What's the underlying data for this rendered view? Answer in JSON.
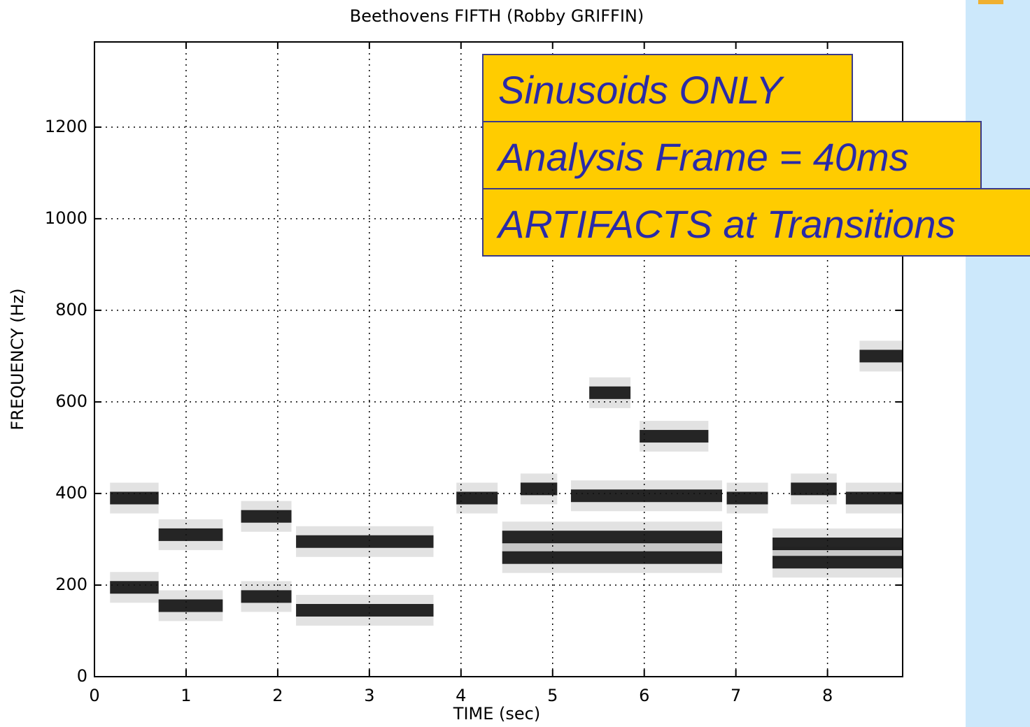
{
  "chart_data": {
    "type": "spectrogram",
    "title": "Beethovens FIFTH    (Robby GRIFFIN)",
    "xlabel": "TIME (sec)",
    "ylabel": "FREQUENCY (Hz)",
    "xlim": [
      0,
      8.82
    ],
    "ylim": [
      0,
      1386
    ],
    "xticks": [
      0,
      1,
      2,
      3,
      4,
      5,
      6,
      7,
      8
    ],
    "yticks": [
      0,
      200,
      400,
      600,
      800,
      1000,
      1200
    ],
    "grid": true,
    "color": "#111111",
    "tracks": [
      {
        "start": 0.17,
        "end": 0.7,
        "frequency": 390
      },
      {
        "start": 0.17,
        "end": 0.7,
        "frequency": 195
      },
      {
        "start": 0.7,
        "end": 1.4,
        "frequency": 310
      },
      {
        "start": 0.7,
        "end": 1.4,
        "frequency": 155
      },
      {
        "start": 1.6,
        "end": 2.15,
        "frequency": 350
      },
      {
        "start": 1.6,
        "end": 2.15,
        "frequency": 175
      },
      {
        "start": 2.2,
        "end": 3.7,
        "frequency": 295
      },
      {
        "start": 2.2,
        "end": 3.7,
        "frequency": 145
      },
      {
        "start": 3.95,
        "end": 4.4,
        "frequency": 390
      },
      {
        "start": 4.65,
        "end": 5.05,
        "frequency": 410
      },
      {
        "start": 4.45,
        "end": 6.85,
        "frequency": 305
      },
      {
        "start": 4.45,
        "end": 6.85,
        "frequency": 260
      },
      {
        "start": 5.2,
        "end": 6.85,
        "frequency": 395
      },
      {
        "start": 5.4,
        "end": 5.85,
        "frequency": 620
      },
      {
        "start": 5.95,
        "end": 6.7,
        "frequency": 525
      },
      {
        "start": 6.9,
        "end": 7.35,
        "frequency": 390
      },
      {
        "start": 7.4,
        "end": 8.82,
        "frequency": 290
      },
      {
        "start": 7.4,
        "end": 8.82,
        "frequency": 250
      },
      {
        "start": 7.6,
        "end": 8.1,
        "frequency": 410
      },
      {
        "start": 8.2,
        "end": 8.82,
        "frequency": 390
      },
      {
        "start": 8.35,
        "end": 8.82,
        "frequency": 700
      }
    ],
    "annotations": [
      "Sinusoids ONLY",
      "Analysis Frame = 40ms",
      "ARTIFACTS at Transitions"
    ]
  }
}
